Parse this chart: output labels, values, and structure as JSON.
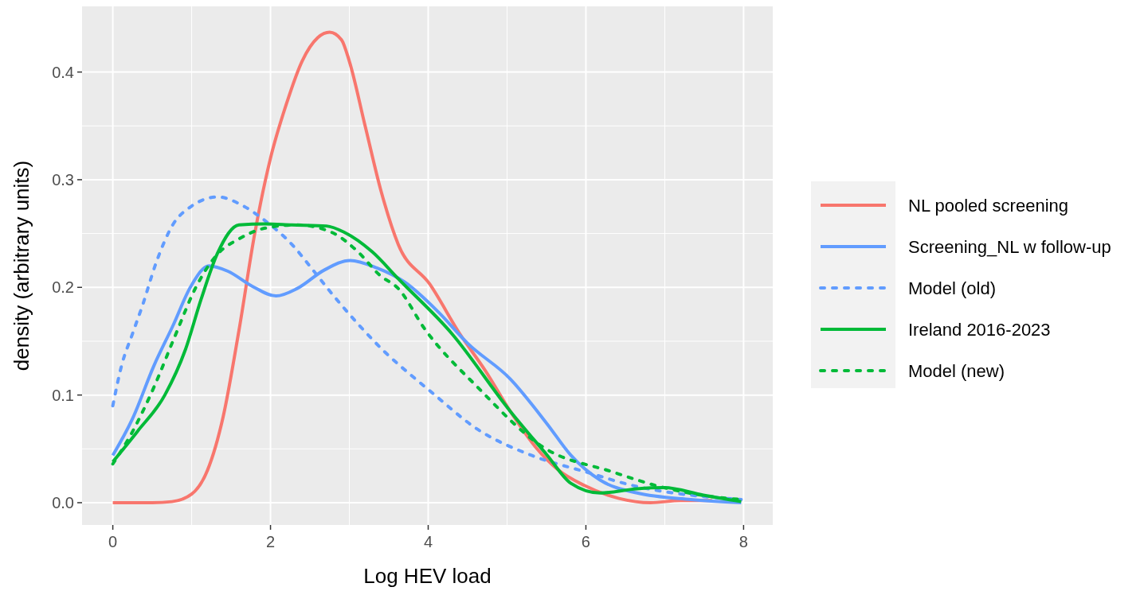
{
  "chart_data": {
    "type": "line",
    "xlabel": "Log HEV load",
    "ylabel": "density (arbitrary units)",
    "xlim": [
      -0.39,
      8.37
    ],
    "ylim": [
      -0.0207,
      0.461
    ],
    "xticks": [
      0,
      2,
      4,
      6,
      8
    ],
    "yticks": [
      {
        "value": 0,
        "label": "0.0"
      },
      {
        "value": 0.1,
        "label": "0.1"
      },
      {
        "value": 0.2,
        "label": "0.2"
      },
      {
        "value": 0.3,
        "label": "0.3"
      },
      {
        "value": 0.4,
        "label": "0.4"
      }
    ],
    "grid": true,
    "legend": "right",
    "series": [
      {
        "name": "NL pooled screening",
        "color": "#f8766d",
        "line_style": "solid",
        "x": [
          0,
          0.5,
          0.75,
          1.0,
          1.2,
          1.4,
          1.6,
          1.8,
          2.0,
          2.2,
          2.4,
          2.6,
          2.75,
          2.9,
          3.0,
          3.2,
          3.4,
          3.62,
          4.02,
          4.4,
          4.73,
          5.04,
          5.37,
          5.64,
          5.98,
          6.42,
          6.82,
          7.2,
          7.6
        ],
        "values": [
          0,
          0,
          0.001,
          0.008,
          0.03,
          0.08,
          0.16,
          0.25,
          0.32,
          0.37,
          0.41,
          0.432,
          0.437,
          0.43,
          0.41,
          0.35,
          0.29,
          0.24,
          0.203,
          0.157,
          0.122,
          0.085,
          0.051,
          0.031,
          0.016,
          0.004,
          0,
          0.002,
          0.002
        ]
      },
      {
        "name": "Screening_NL w follow-up",
        "color": "#619cff",
        "line_style": "solid",
        "x": [
          0,
          0.25,
          0.52,
          0.76,
          0.99,
          1.22,
          1.46,
          1.77,
          2.07,
          2.34,
          2.68,
          3.01,
          3.35,
          3.7,
          4.13,
          4.5,
          5.04,
          5.51,
          5.81,
          6.18,
          6.65,
          7.33,
          7.97
        ],
        "values": [
          0.044,
          0.078,
          0.127,
          0.164,
          0.201,
          0.22,
          0.215,
          0.201,
          0.192,
          0.199,
          0.216,
          0.225,
          0.218,
          0.205,
          0.177,
          0.148,
          0.115,
          0.073,
          0.044,
          0.021,
          0.009,
          0.003,
          0
        ]
      },
      {
        "name": "Model (old)",
        "color": "#619cff",
        "line_style": "dotted",
        "x": [
          0,
          0.11,
          0.25,
          0.38,
          0.55,
          0.76,
          0.99,
          1.33,
          1.67,
          1.93,
          2.27,
          2.54,
          2.78,
          3.11,
          3.45,
          3.79,
          4.02,
          4.63,
          5.31,
          5.98,
          6.65,
          7.33,
          7.97
        ],
        "values": [
          0.09,
          0.127,
          0.157,
          0.184,
          0.223,
          0.258,
          0.275,
          0.284,
          0.275,
          0.262,
          0.24,
          0.216,
          0.194,
          0.166,
          0.14,
          0.118,
          0.104,
          0.068,
          0.044,
          0.029,
          0.015,
          0.007,
          0.003
        ]
      },
      {
        "name": "Ireland 2016-2023",
        "color": "#00ba38",
        "line_style": "solid",
        "x": [
          0,
          0.31,
          0.66,
          0.92,
          1.12,
          1.33,
          1.6,
          1.93,
          2.27,
          2.71,
          2.94,
          3.29,
          3.62,
          4.3,
          5.04,
          5.51,
          5.81,
          6.18,
          6.65,
          6.99,
          7.49,
          7.97
        ],
        "values": [
          0.038,
          0.066,
          0.1,
          0.142,
          0.189,
          0.232,
          0.258,
          0.259,
          0.258,
          0.257,
          0.251,
          0.233,
          0.208,
          0.157,
          0.085,
          0.044,
          0.018,
          0.009,
          0.013,
          0.014,
          0.007,
          0.001
        ]
      },
      {
        "name": "Model (new)",
        "color": "#00ba38",
        "line_style": "dotted",
        "x": [
          0,
          0.25,
          0.52,
          0.79,
          1.06,
          1.33,
          1.6,
          1.93,
          2.34,
          2.78,
          3.11,
          3.39,
          3.62,
          3.95,
          4.63,
          5.47,
          6.32,
          6.99,
          7.66,
          7.97
        ],
        "values": [
          0.036,
          0.066,
          0.107,
          0.155,
          0.201,
          0.231,
          0.245,
          0.255,
          0.258,
          0.251,
          0.233,
          0.211,
          0.199,
          0.162,
          0.107,
          0.051,
          0.029,
          0.014,
          0.005,
          0.003
        ]
      }
    ]
  }
}
